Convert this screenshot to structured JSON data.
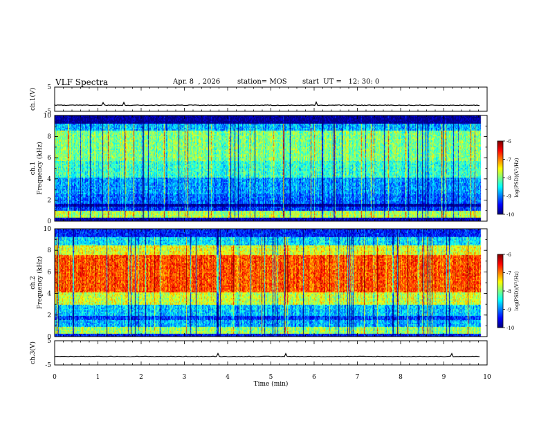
{
  "header": {
    "title": "VLF Spectra",
    "date": "Apr. 8  , 2026",
    "station": "station= MOS",
    "start_ut": "start  UT =   12: 30: 0"
  },
  "chart_data": [
    {
      "type": "line",
      "panel": "ch1-waveform",
      "ylabel": "ch.1(V)",
      "yticks": [
        "5",
        "-5"
      ],
      "ylim": [
        -5,
        5
      ],
      "level": -2.5,
      "xlim": [
        0,
        10
      ],
      "data_end": 9.85
    },
    {
      "type": "heatmap",
      "panel": "ch1-spectrogram",
      "ylabel_top": "ch.1",
      "ylabel": "Frequency  (kHz)",
      "yticks": [
        "0",
        "2",
        "4",
        "6",
        "8",
        "10"
      ],
      "ylim": [
        0,
        10
      ],
      "xlim": [
        0,
        10
      ],
      "data_end": 9.85,
      "colorbar": {
        "ticks": [
          "-6",
          "-7",
          "-8",
          "-9",
          "-10"
        ],
        "label": "log(PSD)(V²/Hz)",
        "range": [
          -10,
          -6
        ]
      },
      "bands": [
        {
          "from": 0,
          "to": 0.35,
          "level": -9.8
        },
        {
          "from": 0.35,
          "to": 1.0,
          "level": -7.8
        },
        {
          "from": 1.0,
          "to": 1.5,
          "level": -9.3
        },
        {
          "from": 1.5,
          "to": 1.75,
          "level": -10
        },
        {
          "from": 1.75,
          "to": 2.6,
          "level": -9.1
        },
        {
          "from": 2.6,
          "to": 4.2,
          "level": -8.9
        },
        {
          "from": 4.2,
          "to": 5.8,
          "level": -8.3
        },
        {
          "from": 5.8,
          "to": 8.6,
          "level": -8.0
        },
        {
          "from": 8.6,
          "to": 9.3,
          "level": -8.8
        },
        {
          "from": 9.3,
          "to": 10,
          "level": -10
        }
      ]
    },
    {
      "type": "heatmap",
      "panel": "ch2-spectrogram",
      "ylabel_top": "ch.2",
      "ylabel": "Frequency  (kHz)",
      "yticks": [
        "0",
        "2",
        "4",
        "6",
        "8",
        "10"
      ],
      "ylim": [
        0,
        10
      ],
      "xlim": [
        0,
        10
      ],
      "data_end": 9.85,
      "colorbar": {
        "ticks": [
          "-6",
          "-7",
          "-8",
          "-9",
          "-10"
        ],
        "label": "log(PSD)(V²/Hz)",
        "range": [
          -10,
          -6
        ]
      },
      "bands": [
        {
          "from": 0,
          "to": 0.3,
          "level": -9.5
        },
        {
          "from": 0.3,
          "to": 1.0,
          "level": -7.9
        },
        {
          "from": 1.0,
          "to": 1.6,
          "level": -8.8
        },
        {
          "from": 1.6,
          "to": 2.0,
          "level": -9.3
        },
        {
          "from": 2.0,
          "to": 3.0,
          "level": -8.7
        },
        {
          "from": 3.0,
          "to": 4.2,
          "level": -7.7
        },
        {
          "from": 4.2,
          "to": 7.6,
          "level": -6.8
        },
        {
          "from": 7.6,
          "to": 8.5,
          "level": -7.6
        },
        {
          "from": 8.5,
          "to": 9.3,
          "level": -8.6
        },
        {
          "from": 9.3,
          "to": 10,
          "level": -9.4
        }
      ]
    },
    {
      "type": "line",
      "panel": "ch3-waveform",
      "ylabel": "ch.3(V)",
      "yticks": [
        "5",
        "-5"
      ],
      "ylim": [
        -5,
        5
      ],
      "level": -1.5,
      "xlim": [
        0,
        10
      ],
      "data_end": 9.85,
      "xlabel": "Time  (min)",
      "xticks": [
        "0",
        "1",
        "2",
        "3",
        "4",
        "5",
        "6",
        "7",
        "8",
        "9",
        "10"
      ]
    }
  ]
}
